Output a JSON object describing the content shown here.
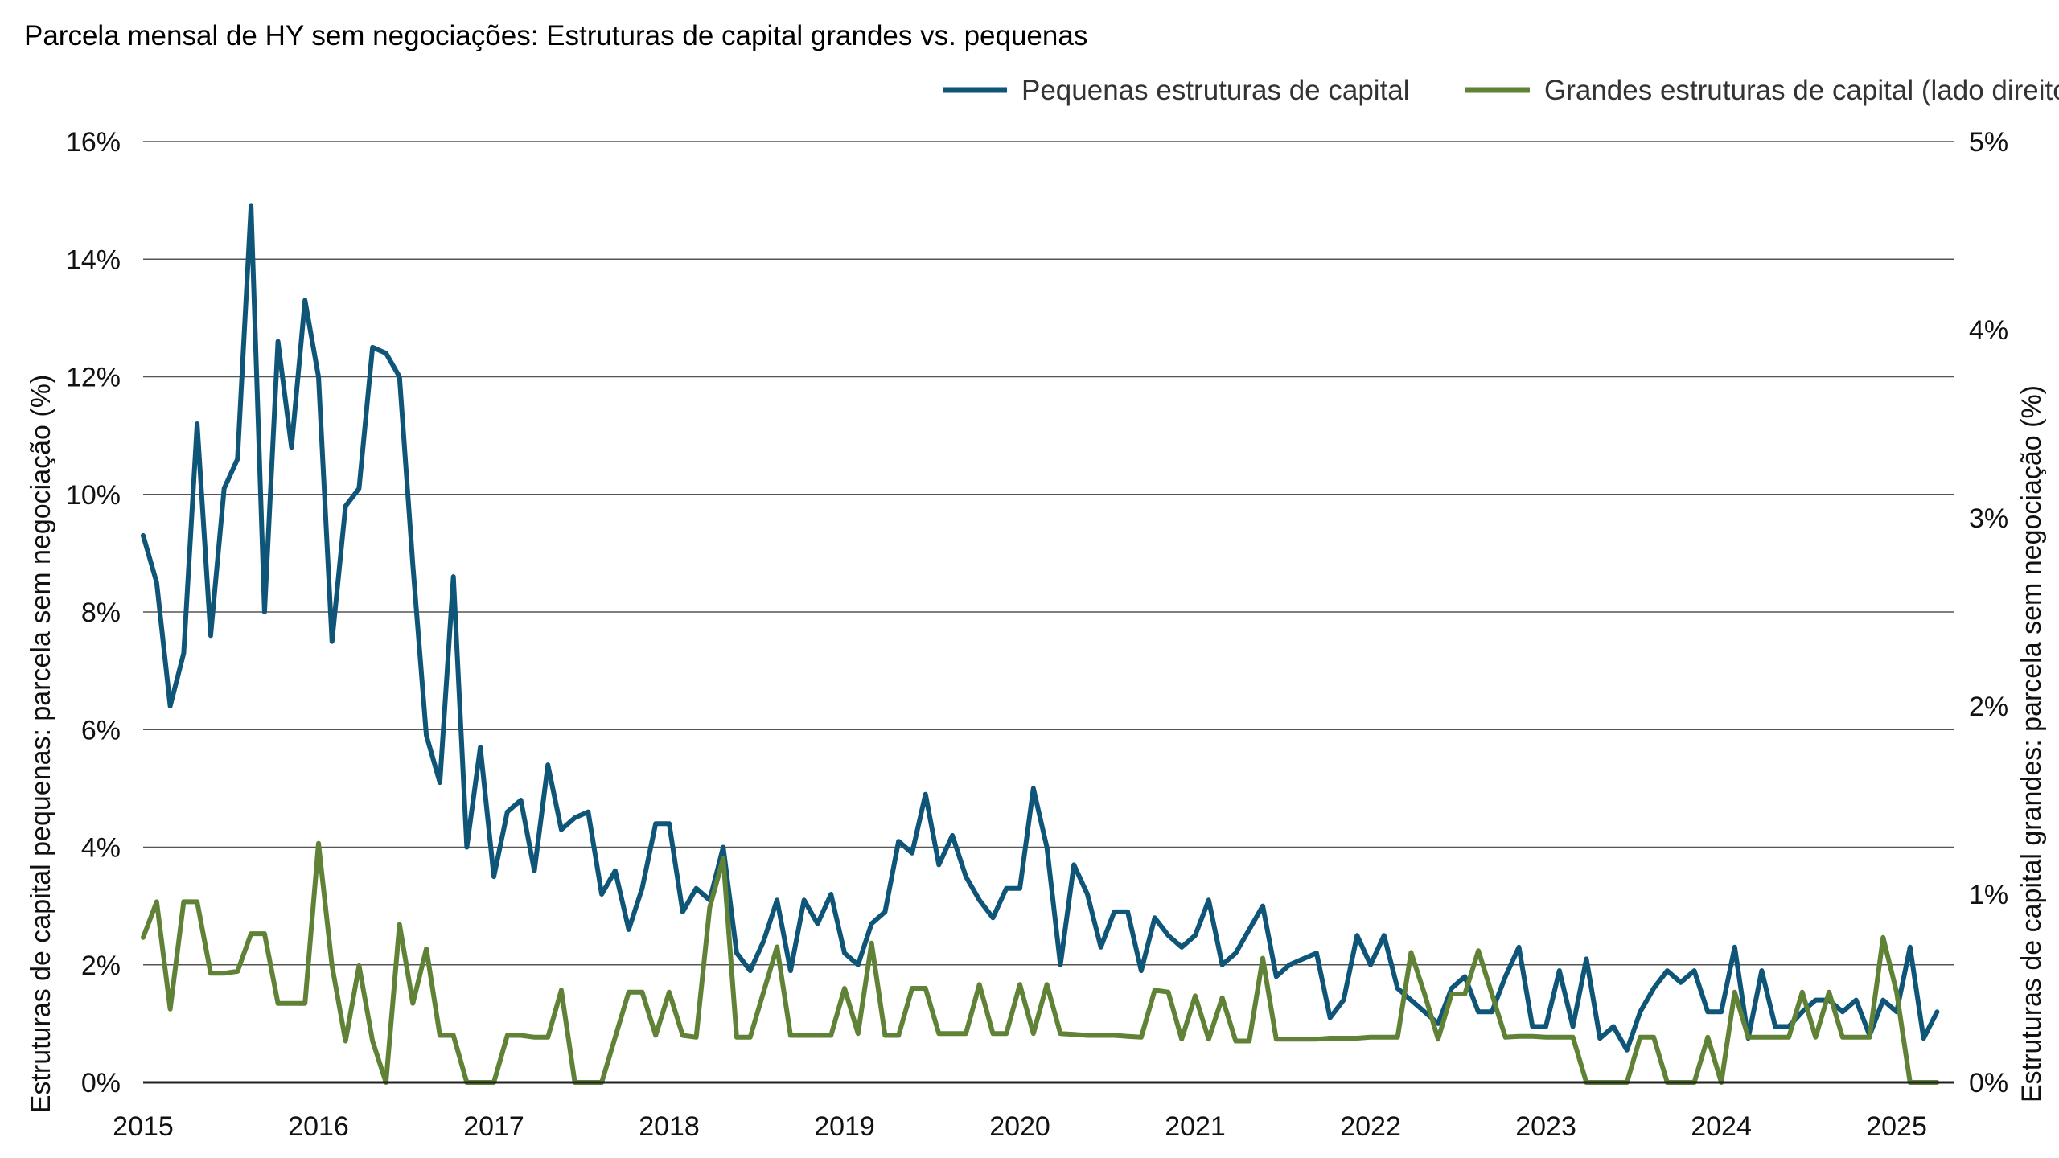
{
  "chart_data": {
    "type": "line",
    "title": "Parcela mensal de HY sem negociações: Estruturas de capital grandes vs. pequenas",
    "ylabel_left": "Estruturas de capital pequenas: parcela sem negociação (%)",
    "ylabel_right": "Estruturas de capital grandes: parcela sem negociação (%)",
    "x_tick_labels": [
      "2015",
      "2016",
      "2017",
      "2018",
      "2019",
      "2020",
      "2021",
      "2022",
      "2023",
      "2024",
      "2025"
    ],
    "y_left_ticks": [
      "0%",
      "2%",
      "4%",
      "6%",
      "8%",
      "10%",
      "12%",
      "14%",
      "16%"
    ],
    "y_right_ticks": [
      "0%",
      "1%",
      "2%",
      "3%",
      "4%",
      "5%"
    ],
    "ylim_left": [
      0,
      16
    ],
    "ylim_right": [
      0,
      5
    ],
    "xlim": [
      2015.0,
      2025.33
    ],
    "grid": "horizontal",
    "legend_position": "top-right",
    "colors": {
      "small": "#0e5578",
      "large": "#5f8236",
      "grid": "#555555",
      "baseline": "#222222"
    },
    "series": [
      {
        "name": "Pequenas estruturas de capital",
        "axis": "left",
        "points": [
          [
            2015.0,
            9.3
          ],
          [
            2015.077,
            8.5
          ],
          [
            2015.154,
            6.4
          ],
          [
            2015.231,
            7.3
          ],
          [
            2015.308,
            11.2
          ],
          [
            2015.385,
            7.6
          ],
          [
            2015.462,
            10.1
          ],
          [
            2015.538,
            10.6
          ],
          [
            2015.615,
            14.9
          ],
          [
            2015.692,
            8.0
          ],
          [
            2015.769,
            12.6
          ],
          [
            2015.846,
            10.8
          ],
          [
            2015.923,
            13.3
          ],
          [
            2016.0,
            12.0
          ],
          [
            2016.077,
            7.5
          ],
          [
            2016.154,
            9.8
          ],
          [
            2016.231,
            10.1
          ],
          [
            2016.308,
            12.5
          ],
          [
            2016.385,
            12.4
          ],
          [
            2016.462,
            12.0
          ],
          [
            2016.538,
            8.8
          ],
          [
            2016.615,
            5.9
          ],
          [
            2016.692,
            5.1
          ],
          [
            2016.769,
            8.6
          ],
          [
            2016.846,
            4.0
          ],
          [
            2016.923,
            5.7
          ],
          [
            2017.0,
            3.5
          ],
          [
            2017.077,
            4.6
          ],
          [
            2017.154,
            4.8
          ],
          [
            2017.231,
            3.6
          ],
          [
            2017.308,
            5.4
          ],
          [
            2017.385,
            4.3
          ],
          [
            2017.462,
            4.5
          ],
          [
            2017.538,
            4.6
          ],
          [
            2017.615,
            3.2
          ],
          [
            2017.692,
            3.6
          ],
          [
            2017.769,
            2.6
          ],
          [
            2017.846,
            3.3
          ],
          [
            2017.923,
            4.4
          ],
          [
            2018.0,
            4.4
          ],
          [
            2018.077,
            2.9
          ],
          [
            2018.154,
            3.3
          ],
          [
            2018.231,
            3.1
          ],
          [
            2018.308,
            4.0
          ],
          [
            2018.385,
            2.2
          ],
          [
            2018.462,
            1.9
          ],
          [
            2018.538,
            2.4
          ],
          [
            2018.615,
            3.1
          ],
          [
            2018.692,
            1.9
          ],
          [
            2018.769,
            3.1
          ],
          [
            2018.846,
            2.7
          ],
          [
            2018.923,
            3.2
          ],
          [
            2019.0,
            2.2
          ],
          [
            2019.077,
            2.0
          ],
          [
            2019.154,
            2.7
          ],
          [
            2019.231,
            2.9
          ],
          [
            2019.308,
            4.1
          ],
          [
            2019.385,
            3.9
          ],
          [
            2019.462,
            4.9
          ],
          [
            2019.538,
            3.7
          ],
          [
            2019.615,
            4.2
          ],
          [
            2019.692,
            3.5
          ],
          [
            2019.769,
            3.1
          ],
          [
            2019.846,
            2.8
          ],
          [
            2019.923,
            3.3
          ],
          [
            2020.0,
            3.3
          ],
          [
            2020.077,
            5.0
          ],
          [
            2020.154,
            4.0
          ],
          [
            2020.231,
            2.0
          ],
          [
            2020.308,
            3.7
          ],
          [
            2020.385,
            3.2
          ],
          [
            2020.462,
            2.3
          ],
          [
            2020.538,
            2.9
          ],
          [
            2020.615,
            2.9
          ],
          [
            2020.692,
            1.9
          ],
          [
            2020.769,
            2.8
          ],
          [
            2020.846,
            2.5
          ],
          [
            2020.923,
            2.3
          ],
          [
            2021.0,
            2.5
          ],
          [
            2021.077,
            3.1
          ],
          [
            2021.154,
            2.0
          ],
          [
            2021.231,
            2.2
          ],
          [
            2021.308,
            2.6
          ],
          [
            2021.385,
            3.0
          ],
          [
            2021.462,
            1.8
          ],
          [
            2021.538,
            2.0
          ],
          [
            2021.615,
            2.1
          ],
          [
            2021.692,
            2.2
          ],
          [
            2021.769,
            1.1
          ],
          [
            2021.846,
            1.4
          ],
          [
            2021.923,
            2.5
          ],
          [
            2022.0,
            2.0
          ],
          [
            2022.077,
            2.5
          ],
          [
            2022.154,
            1.6
          ],
          [
            2022.231,
            1.4
          ],
          [
            2022.308,
            1.2
          ],
          [
            2022.385,
            1.0
          ],
          [
            2022.462,
            1.6
          ],
          [
            2022.538,
            1.8
          ],
          [
            2022.615,
            1.2
          ],
          [
            2022.692,
            1.2
          ],
          [
            2022.769,
            1.8
          ],
          [
            2022.846,
            2.3
          ],
          [
            2022.923,
            0.95
          ],
          [
            2023.0,
            0.95
          ],
          [
            2023.077,
            1.9
          ],
          [
            2023.154,
            0.95
          ],
          [
            2023.231,
            2.1
          ],
          [
            2023.308,
            0.75
          ],
          [
            2023.385,
            0.95
          ],
          [
            2023.462,
            0.55
          ],
          [
            2023.538,
            1.2
          ],
          [
            2023.615,
            1.6
          ],
          [
            2023.692,
            1.9
          ],
          [
            2023.769,
            1.7
          ],
          [
            2023.846,
            1.9
          ],
          [
            2023.923,
            1.2
          ],
          [
            2024.0,
            1.2
          ],
          [
            2024.077,
            2.3
          ],
          [
            2024.154,
            0.75
          ],
          [
            2024.231,
            1.9
          ],
          [
            2024.308,
            0.95
          ],
          [
            2024.385,
            0.95
          ],
          [
            2024.462,
            1.2
          ],
          [
            2024.538,
            1.4
          ],
          [
            2024.615,
            1.4
          ],
          [
            2024.692,
            1.2
          ],
          [
            2024.769,
            1.4
          ],
          [
            2024.846,
            0.8
          ],
          [
            2024.923,
            1.4
          ],
          [
            2025.0,
            1.2
          ],
          [
            2025.077,
            2.3
          ],
          [
            2025.154,
            0.75
          ],
          [
            2025.231,
            1.2
          ]
        ]
      },
      {
        "name": "Grandes estruturas de capital (lado direito)",
        "axis": "right",
        "points": [
          [
            2015.0,
            0.77
          ],
          [
            2015.077,
            0.96
          ],
          [
            2015.154,
            0.39
          ],
          [
            2015.231,
            0.96
          ],
          [
            2015.308,
            0.96
          ],
          [
            2015.385,
            0.58
          ],
          [
            2015.462,
            0.58
          ],
          [
            2015.538,
            0.59
          ],
          [
            2015.615,
            0.79
          ],
          [
            2015.692,
            0.79
          ],
          [
            2015.769,
            0.42
          ],
          [
            2015.846,
            0.42
          ],
          [
            2015.923,
            0.42
          ],
          [
            2016.0,
            1.27
          ],
          [
            2016.077,
            0.62
          ],
          [
            2016.154,
            0.22
          ],
          [
            2016.231,
            0.62
          ],
          [
            2016.308,
            0.22
          ],
          [
            2016.385,
            0.0
          ],
          [
            2016.462,
            0.84
          ],
          [
            2016.538,
            0.42
          ],
          [
            2016.615,
            0.71
          ],
          [
            2016.692,
            0.25
          ],
          [
            2016.769,
            0.25
          ],
          [
            2016.846,
            0.0
          ],
          [
            2016.923,
            0.0
          ],
          [
            2017.0,
            0.0
          ],
          [
            2017.077,
            0.25
          ],
          [
            2017.154,
            0.25
          ],
          [
            2017.231,
            0.24
          ],
          [
            2017.308,
            0.24
          ],
          [
            2017.385,
            0.49
          ],
          [
            2017.462,
            0.0
          ],
          [
            2017.538,
            0.0
          ],
          [
            2017.615,
            0.0
          ],
          [
            2017.692,
            0.24
          ],
          [
            2017.769,
            0.48
          ],
          [
            2017.846,
            0.48
          ],
          [
            2017.923,
            0.25
          ],
          [
            2018.0,
            0.48
          ],
          [
            2018.077,
            0.25
          ],
          [
            2018.154,
            0.24
          ],
          [
            2018.231,
            0.93
          ],
          [
            2018.308,
            1.19
          ],
          [
            2018.385,
            0.24
          ],
          [
            2018.462,
            0.24
          ],
          [
            2018.538,
            0.48
          ],
          [
            2018.615,
            0.72
          ],
          [
            2018.692,
            0.25
          ],
          [
            2018.769,
            0.25
          ],
          [
            2018.846,
            0.25
          ],
          [
            2018.923,
            0.25
          ],
          [
            2019.0,
            0.5
          ],
          [
            2019.077,
            0.26
          ],
          [
            2019.154,
            0.74
          ],
          [
            2019.231,
            0.25
          ],
          [
            2019.308,
            0.25
          ],
          [
            2019.385,
            0.5
          ],
          [
            2019.462,
            0.5
          ],
          [
            2019.538,
            0.26
          ],
          [
            2019.615,
            0.26
          ],
          [
            2019.692,
            0.26
          ],
          [
            2019.769,
            0.52
          ],
          [
            2019.846,
            0.26
          ],
          [
            2019.923,
            0.26
          ],
          [
            2020.0,
            0.52
          ],
          [
            2020.077,
            0.26
          ],
          [
            2020.154,
            0.52
          ],
          [
            2020.231,
            0.26
          ],
          [
            2020.308,
            0.255
          ],
          [
            2020.385,
            0.25
          ],
          [
            2020.462,
            0.25
          ],
          [
            2020.538,
            0.25
          ],
          [
            2020.615,
            0.245
          ],
          [
            2020.692,
            0.24
          ],
          [
            2020.769,
            0.49
          ],
          [
            2020.846,
            0.48
          ],
          [
            2020.923,
            0.23
          ],
          [
            2021.0,
            0.46
          ],
          [
            2021.077,
            0.23
          ],
          [
            2021.154,
            0.45
          ],
          [
            2021.231,
            0.22
          ],
          [
            2021.308,
            0.22
          ],
          [
            2021.385,
            0.66
          ],
          [
            2021.462,
            0.23
          ],
          [
            2021.538,
            0.23
          ],
          [
            2021.615,
            0.23
          ],
          [
            2021.692,
            0.23
          ],
          [
            2021.769,
            0.235
          ],
          [
            2021.846,
            0.235
          ],
          [
            2021.923,
            0.235
          ],
          [
            2022.0,
            0.24
          ],
          [
            2022.077,
            0.24
          ],
          [
            2022.154,
            0.24
          ],
          [
            2022.231,
            0.69
          ],
          [
            2022.308,
            0.47
          ],
          [
            2022.385,
            0.23
          ],
          [
            2022.462,
            0.47
          ],
          [
            2022.538,
            0.47
          ],
          [
            2022.615,
            0.7
          ],
          [
            2022.692,
            0.47
          ],
          [
            2022.769,
            0.24
          ],
          [
            2022.846,
            0.245
          ],
          [
            2022.923,
            0.245
          ],
          [
            2023.0,
            0.24
          ],
          [
            2023.077,
            0.24
          ],
          [
            2023.154,
            0.24
          ],
          [
            2023.231,
            0.0
          ],
          [
            2023.308,
            0.0
          ],
          [
            2023.385,
            0.0
          ],
          [
            2023.462,
            0.0
          ],
          [
            2023.538,
            0.24
          ],
          [
            2023.615,
            0.24
          ],
          [
            2023.692,
            0.0
          ],
          [
            2023.769,
            0.0
          ],
          [
            2023.846,
            0.0
          ],
          [
            2023.923,
            0.24
          ],
          [
            2024.0,
            0.0
          ],
          [
            2024.077,
            0.48
          ],
          [
            2024.154,
            0.24
          ],
          [
            2024.231,
            0.24
          ],
          [
            2024.308,
            0.24
          ],
          [
            2024.385,
            0.24
          ],
          [
            2024.462,
            0.48
          ],
          [
            2024.538,
            0.24
          ],
          [
            2024.615,
            0.48
          ],
          [
            2024.692,
            0.24
          ],
          [
            2024.769,
            0.24
          ],
          [
            2024.846,
            0.24
          ],
          [
            2024.923,
            0.77
          ],
          [
            2025.0,
            0.48
          ],
          [
            2025.077,
            0.0
          ],
          [
            2025.154,
            0.0
          ],
          [
            2025.231,
            0.0
          ]
        ]
      }
    ]
  }
}
